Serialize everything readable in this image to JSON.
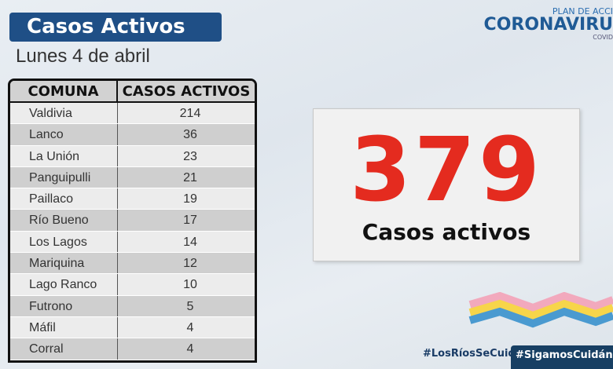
{
  "header": {
    "title": "Casos Activos",
    "date": "Lunes 4 de abril"
  },
  "logo": {
    "top": "PLAN DE ACCI",
    "main": "CORONAVIRU",
    "sub": "COVID"
  },
  "table": {
    "columns": [
      "COMUNA",
      "CASOS ACTIVOS"
    ],
    "rows": [
      [
        "Valdivia",
        "214"
      ],
      [
        "Lanco",
        "36"
      ],
      [
        "La Unión",
        "23"
      ],
      [
        "Panguipulli",
        "21"
      ],
      [
        "Paillaco",
        "19"
      ],
      [
        "Río Bueno",
        "17"
      ],
      [
        "Los Lagos",
        "14"
      ],
      [
        "Mariquina",
        "12"
      ],
      [
        "Lago Ranco",
        "10"
      ],
      [
        "Futrono",
        "5"
      ],
      [
        "Máfil",
        "4"
      ],
      [
        "Corral",
        "4"
      ]
    ]
  },
  "total": {
    "value": "379",
    "label": "Casos activos"
  },
  "hashtags": [
    "#LosRíosSeCuida",
    "#SigamosCuidándon"
  ],
  "colors": {
    "title_bg": "#1f4f86",
    "total": "#e42b1f",
    "wave": [
      "#f2a9bd",
      "#f7d54a",
      "#4a9ad0"
    ]
  }
}
